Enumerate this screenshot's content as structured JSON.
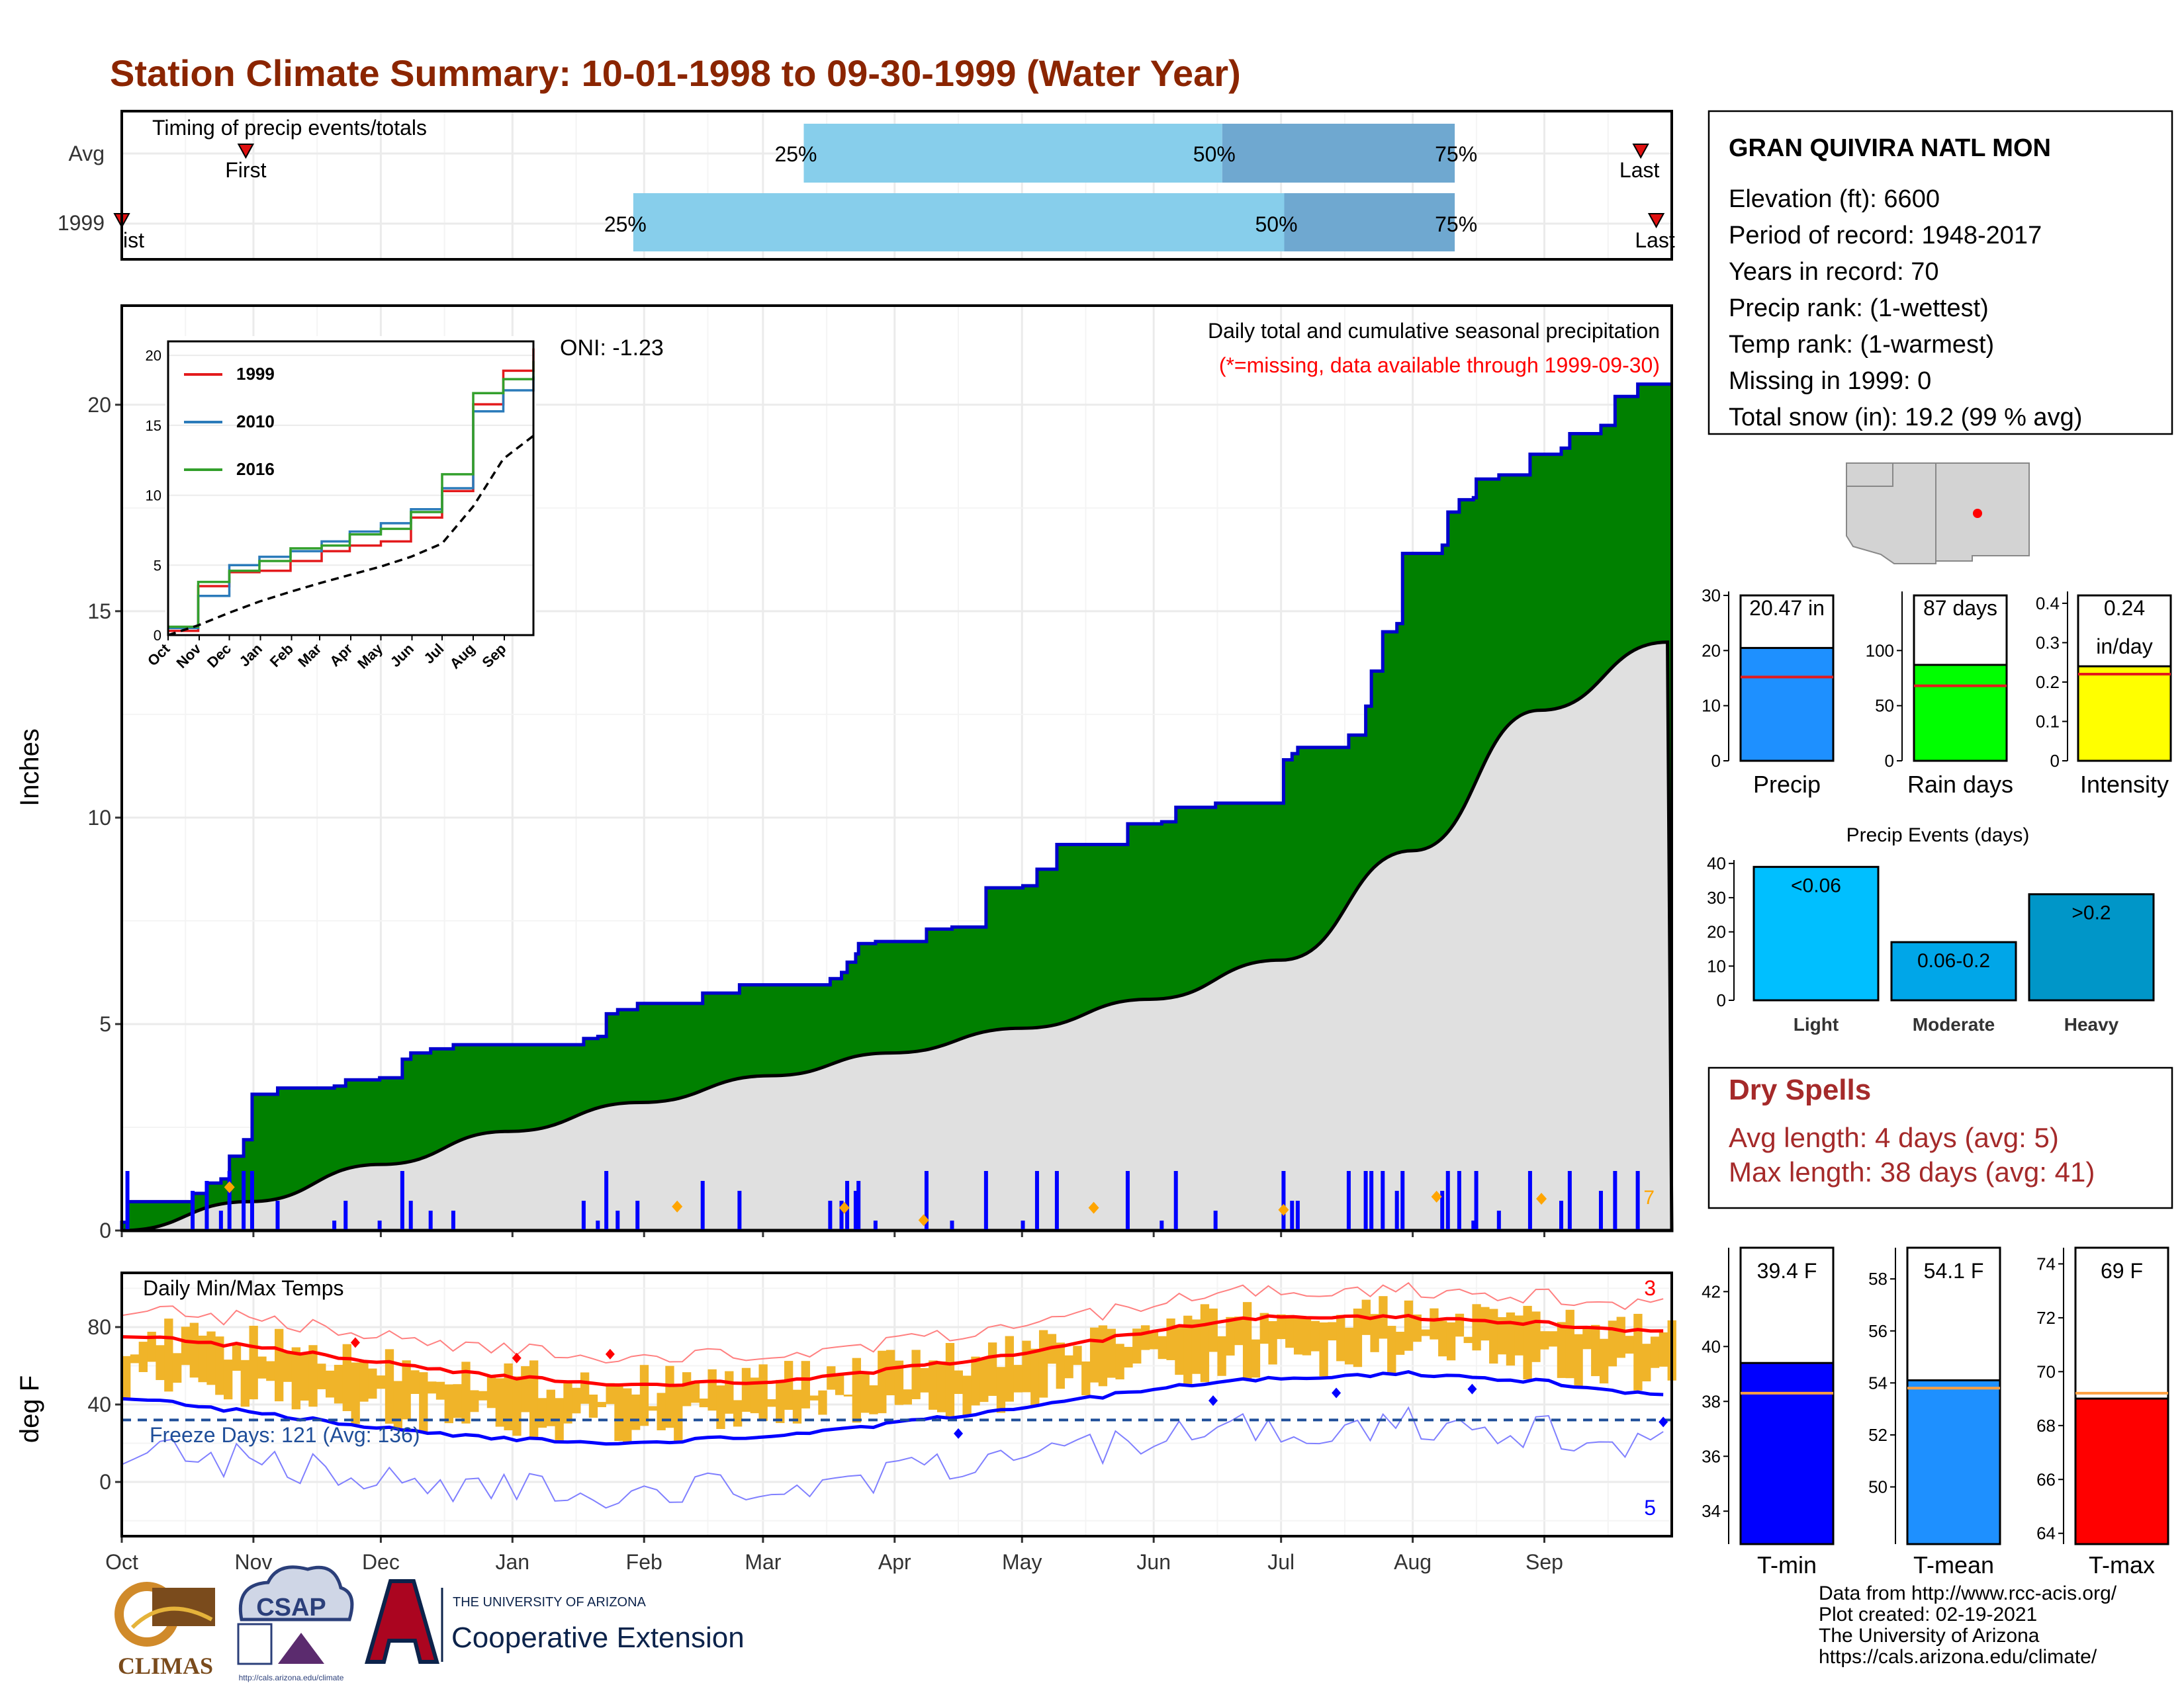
{
  "title": "Station Climate Summary: 10-01-1998 to 09-30-1999 (Water Year)",
  "timing": {
    "label": "Timing of precip events/totals",
    "rows": [
      {
        "name": "Avg",
        "first": 0.08,
        "q25": 0.44,
        "q50": 0.71,
        "q75": 0.86,
        "last": 0.98
      },
      {
        "name": "1999",
        "first": 0.0,
        "q25": 0.33,
        "q50": 0.75,
        "q75": 0.86,
        "last": 0.99
      }
    ],
    "first_label": "First",
    "first_label_1999": "ist",
    "last_label": "Last",
    "p25": "25%",
    "p50": "50%",
    "p75": "75%"
  },
  "months": [
    "Oct",
    "Nov",
    "Dec",
    "Jan",
    "Feb",
    "Mar",
    "Apr",
    "May",
    "Jun",
    "Jul",
    "Aug",
    "Sep"
  ],
  "precip_panel": {
    "ylabel": "Inches",
    "yticks": [
      0,
      5,
      10,
      15,
      20
    ],
    "ylim": [
      0,
      22.4
    ],
    "oni": "ONI: -1.23",
    "subtitle": "Daily total and cumulative seasonal precipitation",
    "missing_note": "(*=missing, data available through 1999-09-30)",
    "corner_label": "7"
  },
  "inset": {
    "yticks": [
      0,
      5,
      10,
      15,
      20
    ],
    "ylim": [
      0,
      21
    ],
    "months": [
      "Oct",
      "Nov",
      "Dec",
      "Jan",
      "Feb",
      "Mar",
      "Apr",
      "May",
      "Jun",
      "Jul",
      "Aug",
      "Sep"
    ],
    "legend": [
      {
        "name": "1999",
        "color": "#e31a1c"
      },
      {
        "name": "2010",
        "color": "#2b7bba"
      },
      {
        "name": "2016",
        "color": "#33a02c"
      }
    ]
  },
  "temp_panel": {
    "ylabel": "deg F",
    "title": "Daily Min/Max Temps",
    "yticks": [
      0,
      40,
      80
    ],
    "ylim": [
      -28,
      108
    ],
    "freeze": "Freeze Days: 121 (Avg: 136)",
    "freeze_level": 32,
    "count_max": "3",
    "count_min": "5"
  },
  "station": {
    "name": "GRAN QUIVIRA NATL MON",
    "lines": [
      "Elevation (ft): 6600",
      "Period of record: 1948-2017",
      "Years in record: 70",
      "Precip rank:  (1-wettest)",
      "Temp rank:  (1-warmest)",
      "Missing in 1999: 0",
      "Total snow (in): 19.2 (99 % avg)"
    ]
  },
  "summary_bars": [
    {
      "label": "Precip",
      "value_label": "20.47 in",
      "value": 20.47,
      "avg": 15.2,
      "ymax": 30,
      "ticks": [
        0,
        10,
        20,
        30
      ],
      "color": "#1e90ff"
    },
    {
      "label": "Rain days",
      "value_label": "87 days",
      "value": 87,
      "avg": 68,
      "ymax": 150,
      "ticks": [
        0,
        50,
        100
      ],
      "color": "#00ff00"
    },
    {
      "label": "Intensity",
      "value_label": "0.24",
      "value_label2": "in/day",
      "value": 0.24,
      "avg": 0.22,
      "ymax": 0.42,
      "ticks": [
        0.0,
        0.1,
        0.2,
        0.3,
        0.4
      ],
      "color": "#ffff00"
    }
  ],
  "precip_events": {
    "title": "Precip Events (days)",
    "ticks": [
      0,
      10,
      20,
      30,
      40
    ],
    "ymax": 41,
    "bars": [
      {
        "label": "Light",
        "value_label": "<0.06",
        "value": 39,
        "color": "#00bfff"
      },
      {
        "label": "Moderate",
        "value_label": "0.06-0.2",
        "value": 17,
        "color": "#00a6e8"
      },
      {
        "label": "Heavy",
        "value_label": ">0.2",
        "value": 31,
        "color": "#0096c8"
      }
    ]
  },
  "dry_spells": {
    "title": "Dry Spells",
    "avg": "Avg length: 4 days (avg: 5)",
    "max": "Max length: 38 days (avg: 41)"
  },
  "temp_bars": [
    {
      "label": "T-min",
      "value_label": "39.4 F",
      "value": 39.4,
      "avg": 38.3,
      "ymin": 32.8,
      "ymax": 43.6,
      "ticks": [
        34,
        36,
        38,
        40,
        42
      ],
      "color": "#0000ff"
    },
    {
      "label": "T-mean",
      "value_label": "54.1 F",
      "value": 54.1,
      "avg": 53.8,
      "ymin": 47.8,
      "ymax": 59.2,
      "ticks": [
        50,
        52,
        54,
        56,
        58
      ],
      "color": "#1e90ff"
    },
    {
      "label": "T-max",
      "value_label": "69 F",
      "value": 69,
      "avg": 69.2,
      "ymin": 63.6,
      "ymax": 74.6,
      "ticks": [
        64,
        66,
        68,
        70,
        72,
        74
      ],
      "color": "#ff0000"
    }
  ],
  "footer": [
    "Data from http://www.rcc-acis.org/",
    "Plot created: 02-19-2021",
    "The University of Arizona",
    "https://cals.arizona.edu/climate/"
  ],
  "logos": {
    "climas": "CLIMAS",
    "csap": "CSAP",
    "csap_url": "http://cals.arizona.edu/climate",
    "ua_small": "THE UNIVERSITY OF ARIZONA",
    "ua_big": "Cooperative Extension"
  },
  "chart_data": [
    {
      "type": "area",
      "title": "Daily total and cumulative seasonal precipitation",
      "ylabel": "Inches",
      "ylim": [
        0,
        22.4
      ],
      "x_unit": "day of water year (Oct 1 = 0)",
      "cumulative_1999": {
        "steps": [
          [
            0,
            0.2
          ],
          [
            2,
            0.7
          ],
          [
            25,
            0.9
          ],
          [
            30,
            1.15
          ],
          [
            35,
            1.25
          ],
          [
            38,
            1.8
          ],
          [
            43,
            2.2
          ],
          [
            46,
            3.3
          ],
          [
            55,
            3.45
          ],
          [
            75,
            3.5
          ],
          [
            79,
            3.65
          ],
          [
            91,
            3.7
          ],
          [
            99,
            4.15
          ],
          [
            102,
            4.3
          ],
          [
            109,
            4.4
          ],
          [
            117,
            4.5
          ],
          [
            163,
            4.65
          ],
          [
            168,
            4.7
          ],
          [
            171,
            5.25
          ],
          [
            175,
            5.35
          ],
          [
            182,
            5.5
          ],
          [
            205,
            5.75
          ],
          [
            218,
            5.95
          ],
          [
            250,
            6.1
          ],
          [
            254,
            6.25
          ],
          [
            256,
            6.5
          ],
          [
            259,
            6.7
          ],
          [
            260,
            6.95
          ],
          [
            266,
            7.0
          ],
          [
            284,
            7.3
          ],
          [
            293,
            7.35
          ],
          [
            305,
            8.3
          ],
          [
            318,
            8.35
          ],
          [
            323,
            8.75
          ],
          [
            330,
            9.35
          ],
          [
            355,
            9.85
          ],
          [
            367,
            9.9
          ],
          [
            372,
            10.25
          ],
          [
            386,
            10.35
          ],
          [
            410,
            11.4
          ],
          [
            413,
            11.55
          ],
          [
            415,
            11.7
          ],
          [
            433,
            12.0
          ],
          [
            439,
            12.7
          ],
          [
            441,
            13.55
          ],
          [
            445,
            14.5
          ],
          [
            450,
            14.7
          ],
          [
            452,
            16.4
          ],
          [
            466,
            16.6
          ],
          [
            468,
            17.4
          ],
          [
            472,
            17.7
          ],
          [
            477,
            17.75
          ],
          [
            478,
            18.2
          ],
          [
            486,
            18.3
          ],
          [
            497,
            18.8
          ],
          [
            508,
            18.95
          ],
          [
            511,
            19.3
          ],
          [
            522,
            19.5
          ],
          [
            527,
            20.2
          ],
          [
            535,
            20.5
          ],
          [
            547,
            20.5
          ]
        ]
      },
      "cumulative_avg": {
        "x": [
          0,
          30,
          61,
          91,
          122,
          153,
          181,
          212,
          242,
          273,
          304,
          334,
          364
        ],
        "y": [
          0,
          0.7,
          1.6,
          2.4,
          3.1,
          3.75,
          4.3,
          4.9,
          5.6,
          6.55,
          9.2,
          12.6,
          14.25
        ]
      }
    },
    {
      "type": "line",
      "title": "",
      "x_unit": "day of water year",
      "ylim": [
        0,
        21
      ],
      "series": [
        {
          "name": "1999",
          "x": [
            0,
            30,
            61,
            91,
            122,
            153,
            181,
            212,
            242,
            273,
            304,
            334,
            364
          ],
          "y": [
            0.3,
            3.5,
            4.5,
            4.6,
            5.3,
            6.0,
            6.4,
            6.7,
            8.4,
            10.3,
            16.5,
            18.9,
            20.5
          ]
        },
        {
          "name": "2010",
          "x": [
            0,
            30,
            61,
            91,
            122,
            153,
            181,
            212,
            242,
            273,
            304,
            334,
            364
          ],
          "y": [
            0.5,
            2.8,
            5.0,
            5.6,
            6.0,
            6.7,
            7.4,
            8.0,
            9.0,
            10.5,
            16.0,
            17.5,
            18.5
          ]
        },
        {
          "name": "2016",
          "x": [
            0,
            30,
            61,
            91,
            122,
            153,
            181,
            212,
            242,
            273,
            304,
            334,
            364
          ],
          "y": [
            0.6,
            3.8,
            4.6,
            5.3,
            6.2,
            6.4,
            7.2,
            7.6,
            8.8,
            11.5,
            17.3,
            18.3,
            19.6
          ]
        },
        {
          "name": "",
          "x": [
            0,
            30,
            61,
            91,
            122,
            153,
            181,
            212,
            242,
            273,
            304,
            334,
            364
          ],
          "y": [
            0,
            0.7,
            1.6,
            2.4,
            3.1,
            3.75,
            4.3,
            4.9,
            5.6,
            6.55,
            9.2,
            12.6,
            14.25
          ]
        }
      ]
    },
    {
      "type": "line",
      "title": "Daily Min/Max Temps",
      "ylabel": "deg F",
      "x_unit": "day of water year",
      "ylim": [
        -28,
        108
      ],
      "series": [
        {
          "name": "",
          "x": [
            0,
            30,
            61,
            91,
            122,
            153,
            181,
            212,
            242,
            273,
            304,
            334,
            364
          ],
          "y": [
            76,
            70,
            62,
            54,
            50,
            52,
            58,
            66,
            78,
            86,
            85,
            82,
            77
          ]
        },
        {
          "name": "",
          "x": [
            0,
            30,
            61,
            91,
            122,
            153,
            181,
            212,
            242,
            273,
            304,
            334,
            364
          ],
          "y": [
            44,
            36,
            28,
            22,
            20,
            24,
            30,
            38,
            48,
            54,
            56,
            52,
            44
          ]
        }
      ],
      "freeze_line": 32
    }
  ]
}
